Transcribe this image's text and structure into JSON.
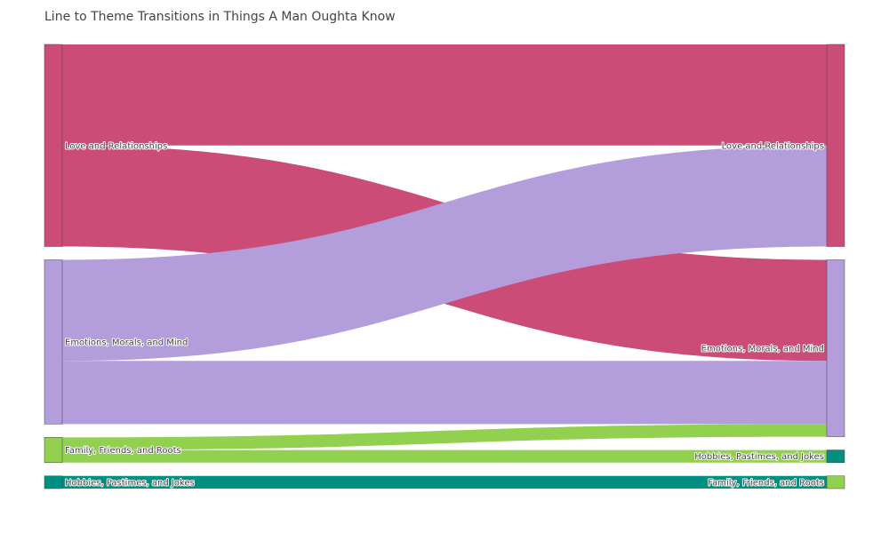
{
  "chart_data": {
    "type": "sankey",
    "title": "Line to Theme Transitions in Things A Man Oughta Know",
    "nodes": [
      {
        "id": "src-love",
        "side": "source",
        "label": "Love and Relationships",
        "color": "#cc4c78"
      },
      {
        "id": "src-emotions",
        "side": "source",
        "label": "Emotions, Morals, and Mind",
        "color": "#b39ddb"
      },
      {
        "id": "src-family",
        "side": "source",
        "label": "Family, Friends, and Roots",
        "color": "#92d050"
      },
      {
        "id": "src-hobbies",
        "side": "source",
        "label": "Hobbies, Pastimes, and Jokes",
        "color": "#00907f"
      },
      {
        "id": "tgt-love",
        "side": "target",
        "label": "Love and Relationships",
        "color": "#cc4c78"
      },
      {
        "id": "tgt-emotions",
        "side": "target",
        "label": "Emotions, Morals, and Mind",
        "color": "#b39ddb"
      },
      {
        "id": "tgt-hobbies",
        "side": "target",
        "label": "Hobbies, Pastimes, and Jokes",
        "color": "#00907f"
      },
      {
        "id": "tgt-family",
        "side": "target",
        "label": "Family, Friends, and Roots",
        "color": "#92d050"
      }
    ],
    "links": [
      {
        "source": "src-love",
        "target": "tgt-love",
        "value": 8
      },
      {
        "source": "src-love",
        "target": "tgt-emotions",
        "value": 8
      },
      {
        "source": "src-emotions",
        "target": "tgt-love",
        "value": 8
      },
      {
        "source": "src-emotions",
        "target": "tgt-emotions",
        "value": 5
      },
      {
        "source": "src-family",
        "target": "tgt-emotions",
        "value": 1
      },
      {
        "source": "src-family",
        "target": "tgt-hobbies",
        "value": 1
      },
      {
        "source": "src-hobbies",
        "target": "tgt-family",
        "value": 1
      }
    ]
  }
}
